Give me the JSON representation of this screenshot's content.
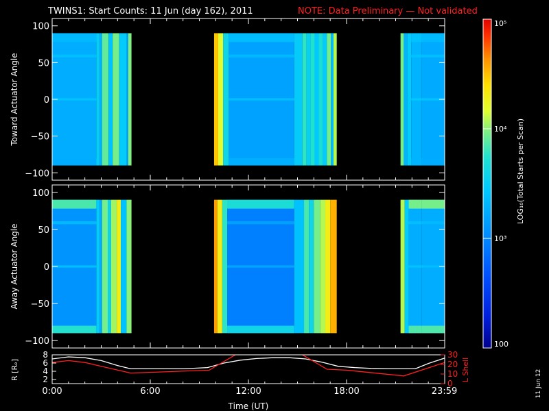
{
  "header": {
    "title": "TWINS1: Start Counts: 11 Jun (day 162), 2011",
    "note": "NOTE: Data Preliminary — Not validated",
    "title_color": "#ffffff",
    "note_color": "#ff2020"
  },
  "footer": {
    "date_stamp": "11 Jun 12"
  },
  "chart_data": [
    {
      "type": "heatmap",
      "ylabel": "Toward Actuator Angle",
      "ylim": [
        -110,
        110
      ],
      "yticks": [
        100,
        50,
        0,
        -50,
        -100
      ],
      "ytick_labels": [
        "100",
        "50",
        "0",
        "−50",
        "−100"
      ],
      "xlim_hours": [
        0,
        24
      ],
      "data_extent_deg": [
        -90,
        90
      ],
      "segments": [
        {
          "start_h": 0.0,
          "end_h": 2.7,
          "base_counts": 1800,
          "edge_counts": 2200,
          "line_counts": 2600
        },
        {
          "start_h": 2.7,
          "end_h": 2.9,
          "base_counts": 3200
        },
        {
          "start_h": 2.9,
          "end_h": 3.05,
          "base_counts": 2000
        },
        {
          "start_h": 3.05,
          "end_h": 3.45,
          "base_counts": 8000
        },
        {
          "start_h": 3.45,
          "end_h": 3.7,
          "base_counts": 2500
        },
        {
          "start_h": 3.7,
          "end_h": 4.1,
          "base_counts": 9000
        },
        {
          "start_h": 4.1,
          "end_h": 4.55,
          "base_counts": 3000
        },
        {
          "start_h": 4.55,
          "end_h": 4.65,
          "base_counts": 1500
        },
        {
          "start_h": 4.65,
          "end_h": 4.85,
          "base_counts": 9500
        },
        {
          "start_h": 9.9,
          "end_h": 10.15,
          "base_counts": 30000
        },
        {
          "start_h": 10.15,
          "end_h": 10.45,
          "base_counts": 15000
        },
        {
          "start_h": 10.45,
          "end_h": 10.8,
          "base_counts": 4000
        },
        {
          "start_h": 10.8,
          "end_h": 14.8,
          "base_counts": 1500,
          "edge_counts": 2300,
          "line_counts": 2400
        },
        {
          "start_h": 14.8,
          "end_h": 15.3,
          "base_counts": 3000
        },
        {
          "start_h": 15.3,
          "end_h": 15.55,
          "base_counts": 6000
        },
        {
          "start_h": 15.55,
          "end_h": 15.8,
          "base_counts": 3500
        },
        {
          "start_h": 15.8,
          "end_h": 16.05,
          "base_counts": 5500
        },
        {
          "start_h": 16.05,
          "end_h": 16.3,
          "base_counts": 2800
        },
        {
          "start_h": 16.3,
          "end_h": 16.55,
          "base_counts": 5000
        },
        {
          "start_h": 16.55,
          "end_h": 16.8,
          "base_counts": 3000
        },
        {
          "start_h": 16.8,
          "end_h": 17.05,
          "base_counts": 9000
        },
        {
          "start_h": 17.05,
          "end_h": 17.2,
          "base_counts": 2200
        },
        {
          "start_h": 17.2,
          "end_h": 17.4,
          "base_counts": 12000
        },
        {
          "start_h": 21.3,
          "end_h": 21.5,
          "base_counts": 9000
        },
        {
          "start_h": 21.5,
          "end_h": 21.7,
          "base_counts": 2000
        },
        {
          "start_h": 21.7,
          "end_h": 21.95,
          "base_counts": 3000
        },
        {
          "start_h": 21.95,
          "end_h": 22.6,
          "base_counts": 2000,
          "edge_counts": 2500,
          "line_counts": 2800
        },
        {
          "start_h": 22.6,
          "end_h": 24.0,
          "base_counts": 1700,
          "edge_counts": 2200,
          "line_counts": 2600
        }
      ]
    },
    {
      "type": "heatmap",
      "ylabel": "Away Actuator Angle",
      "ylim": [
        -110,
        110
      ],
      "yticks": [
        100,
        50,
        0,
        -50,
        -100
      ],
      "ytick_labels": [
        "100",
        "50",
        "0",
        "−50",
        "−100"
      ],
      "xlim_hours": [
        0,
        24
      ],
      "data_extent_deg": [
        -90,
        90
      ],
      "segments": [
        {
          "start_h": 0.0,
          "end_h": 2.7,
          "base_counts": 1200,
          "edge_counts": 7000,
          "line_counts": 2400
        },
        {
          "start_h": 2.7,
          "end_h": 2.9,
          "base_counts": 3000
        },
        {
          "start_h": 2.9,
          "end_h": 3.05,
          "base_counts": 1800
        },
        {
          "start_h": 3.05,
          "end_h": 3.4,
          "base_counts": 9000
        },
        {
          "start_h": 3.4,
          "end_h": 3.6,
          "base_counts": 4000
        },
        {
          "start_h": 3.6,
          "end_h": 3.95,
          "base_counts": 11000
        },
        {
          "start_h": 3.95,
          "end_h": 4.2,
          "base_counts": 20000
        },
        {
          "start_h": 4.2,
          "end_h": 4.55,
          "base_counts": 2500
        },
        {
          "start_h": 4.55,
          "end_h": 4.85,
          "base_counts": 10000
        },
        {
          "start_h": 9.9,
          "end_h": 10.1,
          "base_counts": 40000
        },
        {
          "start_h": 10.1,
          "end_h": 10.4,
          "base_counts": 20000
        },
        {
          "start_h": 10.4,
          "end_h": 10.7,
          "base_counts": 6000
        },
        {
          "start_h": 10.7,
          "end_h": 14.8,
          "base_counts": 900,
          "edge_counts": 5000,
          "line_counts": 1600
        },
        {
          "start_h": 14.8,
          "end_h": 15.4,
          "base_counts": 2500
        },
        {
          "start_h": 15.4,
          "end_h": 15.7,
          "base_counts": 7000
        },
        {
          "start_h": 15.7,
          "end_h": 16.0,
          "base_counts": 4000
        },
        {
          "start_h": 16.0,
          "end_h": 16.4,
          "base_counts": 9000
        },
        {
          "start_h": 16.4,
          "end_h": 16.7,
          "base_counts": 12000
        },
        {
          "start_h": 16.7,
          "end_h": 17.0,
          "base_counts": 20000
        },
        {
          "start_h": 17.0,
          "end_h": 17.4,
          "base_counts": 35000
        },
        {
          "start_h": 21.3,
          "end_h": 21.55,
          "base_counts": 12000
        },
        {
          "start_h": 21.55,
          "end_h": 21.8,
          "base_counts": 3000
        },
        {
          "start_h": 21.8,
          "end_h": 22.6,
          "base_counts": 1800,
          "edge_counts": 9000,
          "line_counts": 2600
        },
        {
          "start_h": 22.6,
          "end_h": 24.0,
          "base_counts": 1800,
          "edge_counts": 9000,
          "line_counts": 2400
        }
      ]
    },
    {
      "type": "line",
      "ylabel": "R [Rₑ]",
      "ylabel_right": "L Shell",
      "ylim": [
        1,
        8
      ],
      "yticks": [
        2,
        4,
        6,
        8
      ],
      "ylim_right": [
        0,
        30
      ],
      "yticks_right": [
        0,
        10,
        20,
        30
      ],
      "xlim_hours": [
        0,
        24
      ],
      "xlabel": "Time (UT)",
      "xtick_hours": [
        0,
        6,
        12,
        18,
        23.98
      ],
      "xtick_labels": [
        "0:00",
        "6:00",
        "12:00",
        "18:00",
        "23:59"
      ],
      "series": [
        {
          "name": "R [Rₑ]",
          "color": "#ffffff",
          "x": [
            0,
            1,
            2,
            3,
            4,
            4.8,
            6,
            8,
            9.5,
            10.5,
            11.5,
            12.5,
            13.5,
            14.5,
            15.5,
            16.5,
            17.5,
            18.5,
            19.5,
            20.5,
            21.5,
            22.2,
            23,
            24
          ],
          "y": [
            7.0,
            7.5,
            7.3,
            6.6,
            5.4,
            4.6,
            4.6,
            4.6,
            4.9,
            6.0,
            6.7,
            7.1,
            7.3,
            7.3,
            7.0,
            6.2,
            5.2,
            4.9,
            4.7,
            4.6,
            4.6,
            4.6,
            5.9,
            7.2
          ]
        },
        {
          "name": "L Shell",
          "color": "#ff2020",
          "x": [
            0,
            1,
            2,
            3,
            4.8,
            9.6,
            11.3,
            11.6,
            14.5,
            15.2,
            16.8,
            18.0,
            21.5,
            24.0
          ],
          "y": [
            22,
            24,
            22,
            18,
            11,
            14,
            31,
            31,
            31,
            31,
            15,
            14,
            8,
            22
          ]
        }
      ]
    }
  ],
  "colorbar": {
    "label": "LOG₁₀(Total Starts per Scan)",
    "min_counts": 100,
    "max_counts": 100000,
    "tick_labels": [
      "10⁵",
      "10⁴",
      "10³",
      "100"
    ],
    "tick_values": [
      100000,
      10000,
      1000,
      100
    ],
    "scale": "log"
  }
}
